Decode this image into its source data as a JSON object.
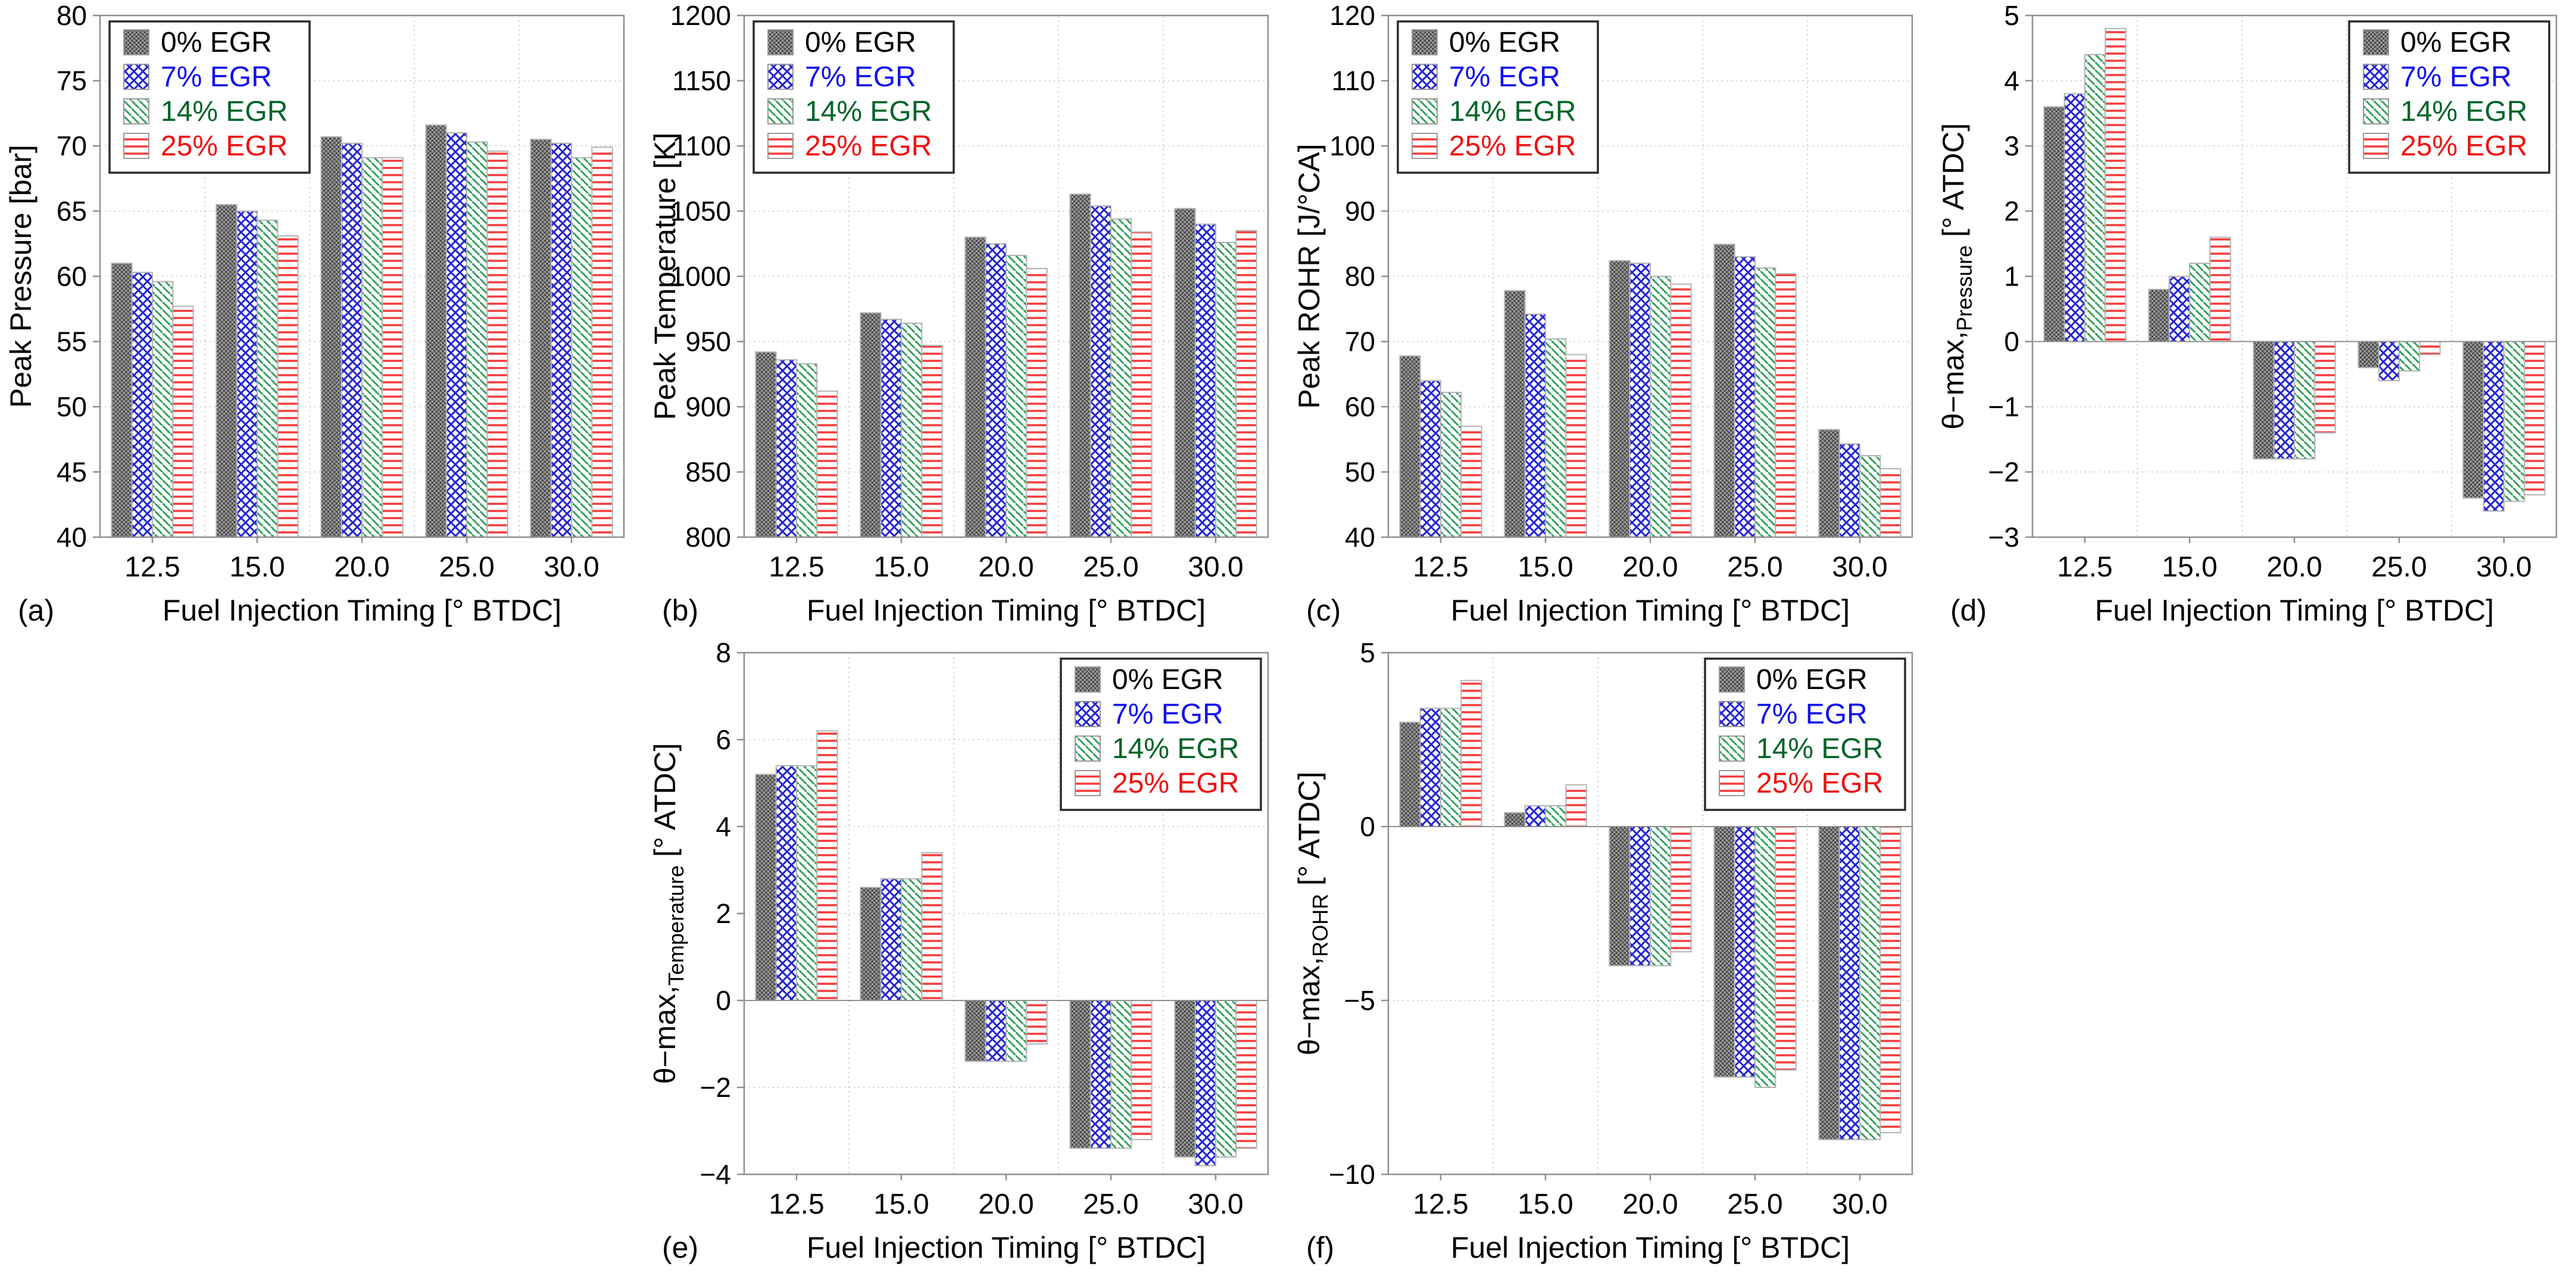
{
  "figure": {
    "background": "#ffffff",
    "frame_color": "#8f8f8f",
    "grid_color": "#bdbdbd",
    "tick_text_color": "#000000",
    "series_styles": [
      {
        "name": "0% EGR",
        "pattern": "gray-checker",
        "text_color": "#000000",
        "pattern_color": "#4e4e4e"
      },
      {
        "name": "7% EGR",
        "pattern": "blue-crosshatch",
        "text_color": "#1010ee",
        "pattern_color": "#2424d2"
      },
      {
        "name": "14% EGR",
        "pattern": "green-diagonal",
        "text_color": "#006428",
        "pattern_color": "#35a05e"
      },
      {
        "name": "25% EGR",
        "pattern": "red-horizontal",
        "text_color": "#ee1111",
        "pattern_color": "#f43b3b"
      }
    ]
  },
  "chart_data": [
    {
      "type": "bar",
      "panel": "(a)",
      "grid_pos": {
        "row": 1,
        "col": 1
      },
      "ylabel_prefix": "Peak Pressure [bar]",
      "ylabel_sub": "",
      "ylabel_unit": "",
      "xlabel": "Fuel Injection Timing [° BTDC]",
      "categories": [
        "12.5",
        "15.0",
        "20.0",
        "25.0",
        "30.0"
      ],
      "ylim": [
        40,
        80
      ],
      "ytick_step": 5,
      "legend_position": "top-left",
      "series": [
        {
          "name": "0% EGR",
          "values": [
            61.0,
            65.5,
            70.7,
            71.6,
            70.5
          ]
        },
        {
          "name": "7% EGR",
          "values": [
            60.3,
            65.0,
            70.2,
            71.0,
            70.2
          ]
        },
        {
          "name": "14% EGR",
          "values": [
            59.6,
            64.3,
            69.1,
            70.3,
            69.1
          ]
        },
        {
          "name": "25% EGR",
          "values": [
            57.7,
            63.1,
            69.1,
            69.6,
            69.9
          ]
        }
      ]
    },
    {
      "type": "bar",
      "panel": "(b)",
      "grid_pos": {
        "row": 1,
        "col": 2
      },
      "ylabel_prefix": "Peak Temperature [K]",
      "ylabel_sub": "",
      "ylabel_unit": "",
      "xlabel": "Fuel Injection Timing [° BTDC]",
      "categories": [
        "12.5",
        "15.0",
        "20.0",
        "25.0",
        "30.0"
      ],
      "ylim": [
        800,
        1200
      ],
      "ytick_step": 50,
      "legend_position": "top-left",
      "series": [
        {
          "name": "0% EGR",
          "values": [
            942,
            972,
            1030,
            1063,
            1052
          ]
        },
        {
          "name": "7% EGR",
          "values": [
            936,
            967,
            1025,
            1054,
            1040
          ]
        },
        {
          "name": "14% EGR",
          "values": [
            933,
            964,
            1016,
            1044,
            1026
          ]
        },
        {
          "name": "25% EGR",
          "values": [
            912,
            947,
            1006,
            1034,
            1035
          ]
        }
      ]
    },
    {
      "type": "bar",
      "panel": "(c)",
      "grid_pos": {
        "row": 1,
        "col": 3
      },
      "ylabel_prefix": "Peak ROHR [J/°CA]",
      "ylabel_sub": "",
      "ylabel_unit": "",
      "xlabel": "Fuel Injection Timing [° BTDC]",
      "categories": [
        "12.5",
        "15.0",
        "20.0",
        "25.0",
        "30.0"
      ],
      "ylim": [
        40,
        120
      ],
      "ytick_step": 10,
      "legend_position": "top-left",
      "series": [
        {
          "name": "0% EGR",
          "values": [
            67.8,
            77.8,
            82.4,
            84.9,
            56.5
          ]
        },
        {
          "name": "7% EGR",
          "values": [
            64.0,
            74.2,
            82.0,
            83.0,
            54.3
          ]
        },
        {
          "name": "14% EGR",
          "values": [
            62.2,
            70.4,
            80.0,
            81.3,
            52.5
          ]
        },
        {
          "name": "25% EGR",
          "values": [
            57.0,
            68.0,
            78.8,
            80.4,
            50.5
          ]
        }
      ]
    },
    {
      "type": "bar",
      "panel": "(d)",
      "grid_pos": {
        "row": 1,
        "col": 4
      },
      "ylabel_prefix": "θ−max,",
      "ylabel_sub": "Pressure",
      "ylabel_unit": " [° ATDC]",
      "xlabel": "Fuel Injection Timing [° BTDC]",
      "categories": [
        "12.5",
        "15.0",
        "20.0",
        "25.0",
        "30.0"
      ],
      "ylim": [
        -3,
        5
      ],
      "ytick_step": 1,
      "legend_position": "top-right",
      "series": [
        {
          "name": "0% EGR",
          "values": [
            3.6,
            0.8,
            -1.8,
            -0.4,
            -2.4
          ]
        },
        {
          "name": "7% EGR",
          "values": [
            3.8,
            1.0,
            -1.8,
            -0.6,
            -2.6
          ]
        },
        {
          "name": "14% EGR",
          "values": [
            4.4,
            1.2,
            -1.8,
            -0.45,
            -2.45
          ]
        },
        {
          "name": "25% EGR",
          "values": [
            4.8,
            1.6,
            -1.4,
            -0.2,
            -2.35
          ]
        }
      ]
    },
    {
      "type": "bar",
      "panel": "(e)",
      "grid_pos": {
        "row": 2,
        "col": 2
      },
      "ylabel_prefix": "θ−max,",
      "ylabel_sub": "Temperature",
      "ylabel_unit": " [° ATDC]",
      "xlabel": "Fuel Injection Timing [° BTDC]",
      "categories": [
        "12.5",
        "15.0",
        "20.0",
        "25.0",
        "30.0"
      ],
      "ylim": [
        -4,
        8
      ],
      "ytick_step": 2,
      "legend_position": "top-right",
      "series": [
        {
          "name": "0% EGR",
          "values": [
            5.2,
            2.6,
            -1.4,
            -3.4,
            -3.6
          ]
        },
        {
          "name": "7% EGR",
          "values": [
            5.4,
            2.8,
            -1.4,
            -3.4,
            -3.8
          ]
        },
        {
          "name": "14% EGR",
          "values": [
            5.4,
            2.8,
            -1.4,
            -3.4,
            -3.6
          ]
        },
        {
          "name": "25% EGR",
          "values": [
            6.2,
            3.4,
            -1.0,
            -3.2,
            -3.4
          ]
        }
      ]
    },
    {
      "type": "bar",
      "panel": "(f)",
      "grid_pos": {
        "row": 2,
        "col": 3
      },
      "ylabel_prefix": "θ−max,",
      "ylabel_sub": "ROHR",
      "ylabel_unit": " [° ATDC]",
      "xlabel": "Fuel Injection Timing [° BTDC]",
      "categories": [
        "12.5",
        "15.0",
        "20.0",
        "25.0",
        "30.0"
      ],
      "ylim": [
        -10,
        5
      ],
      "ytick_step": 5,
      "legend_position": "top-right",
      "series": [
        {
          "name": "0% EGR",
          "values": [
            3.0,
            0.4,
            -4.0,
            -7.2,
            -9.0
          ]
        },
        {
          "name": "7% EGR",
          "values": [
            3.4,
            0.6,
            -4.0,
            -7.2,
            -9.0
          ]
        },
        {
          "name": "14% EGR",
          "values": [
            3.4,
            0.6,
            -4.0,
            -7.5,
            -9.0
          ]
        },
        {
          "name": "25% EGR",
          "values": [
            4.2,
            1.2,
            -3.6,
            -7.0,
            -8.8
          ]
        }
      ]
    }
  ]
}
